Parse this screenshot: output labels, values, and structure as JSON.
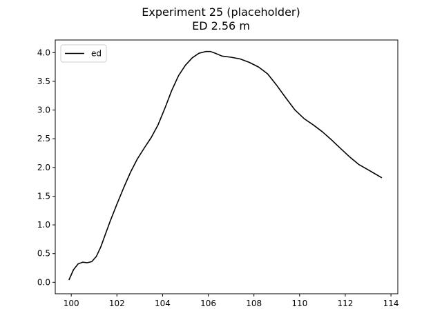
{
  "chart_data": {
    "type": "line",
    "title": "Experiment 25 (placeholder)",
    "subtitle": "ED 2.56 m",
    "xlabel": "",
    "ylabel": "",
    "xlim": [
      99.3,
      114.3
    ],
    "ylim": [
      -0.2,
      4.22
    ],
    "xticks": [
      100,
      102,
      104,
      106,
      108,
      110,
      112,
      114
    ],
    "yticks": [
      0.0,
      0.5,
      1.0,
      1.5,
      2.0,
      2.5,
      3.0,
      3.5,
      4.0
    ],
    "grid": false,
    "legend_position": "upper-left",
    "series": [
      {
        "name": "ed",
        "color": "#000000",
        "x": [
          99.9,
          100.1,
          100.3,
          100.5,
          100.7,
          100.9,
          101.1,
          101.3,
          101.5,
          101.7,
          102.0,
          102.3,
          102.6,
          102.9,
          103.2,
          103.5,
          103.8,
          104.1,
          104.4,
          104.7,
          105.0,
          105.3,
          105.6,
          105.9,
          106.1,
          106.3,
          106.6,
          107.0,
          107.4,
          107.8,
          108.2,
          108.6,
          109.0,
          109.4,
          109.8,
          110.2,
          110.6,
          111.0,
          111.4,
          111.8,
          112.2,
          112.6,
          113.0,
          113.3,
          113.6
        ],
        "y": [
          0.04,
          0.22,
          0.32,
          0.35,
          0.34,
          0.36,
          0.45,
          0.62,
          0.84,
          1.06,
          1.36,
          1.65,
          1.92,
          2.15,
          2.34,
          2.52,
          2.74,
          3.03,
          3.34,
          3.6,
          3.78,
          3.91,
          3.99,
          4.02,
          4.02,
          3.99,
          3.94,
          3.92,
          3.89,
          3.83,
          3.75,
          3.63,
          3.43,
          3.21,
          3.0,
          2.85,
          2.74,
          2.62,
          2.48,
          2.33,
          2.18,
          2.05,
          1.96,
          1.89,
          1.82
        ]
      }
    ]
  }
}
